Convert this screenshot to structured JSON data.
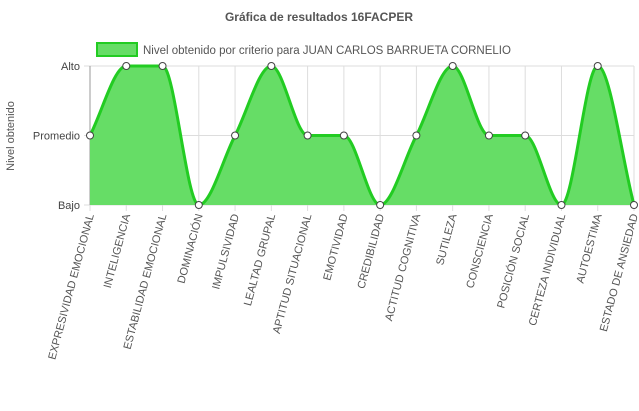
{
  "chart_data": {
    "type": "area",
    "title": "Gráfica de resultados 16FACPER",
    "ylabel": "Nivel obtenido",
    "y_levels": [
      "Bajo",
      "Promedio",
      "Alto"
    ],
    "ylim": [
      0,
      2
    ],
    "legend": {
      "position": "top",
      "label": "Nivel obtenido por criterio para JUAN CARLOS BARRUETA CORNELIO"
    },
    "grid": true,
    "colors": {
      "fill": "#66dd66",
      "stroke": "#22cc22",
      "point_fill": "#ffffff",
      "point_stroke": "#444444",
      "grid": "#dddddd",
      "axis": "#999999"
    },
    "categories": [
      "EXPRESIVIDAD EMOCIONAL",
      "INTELIGENCIA",
      "ESTABILIDAD EMOCIONAL",
      "DOMINACIÓN",
      "IMPULSIVIDAD",
      "LEALTAD GRUPAL",
      "APTITUD SITUACIONAL",
      "EMOTIVIDAD",
      "CREDIBILIDAD",
      "ACTITUD COGNITIVA",
      "SUTILEZA",
      "CONSCIENCIA",
      "POSICIÓN SOCIAL",
      "CERTEZA INDIVIDUAL",
      "AUTOESTIMA",
      "ESTADO DE ANSIEDAD"
    ],
    "series": [
      {
        "name": "Nivel obtenido por criterio para JUAN CARLOS BARRUETA CORNELIO",
        "values": [
          1,
          2,
          2,
          0,
          1,
          2,
          1,
          1,
          0,
          1,
          2,
          1,
          1,
          0,
          2,
          0
        ]
      }
    ]
  }
}
